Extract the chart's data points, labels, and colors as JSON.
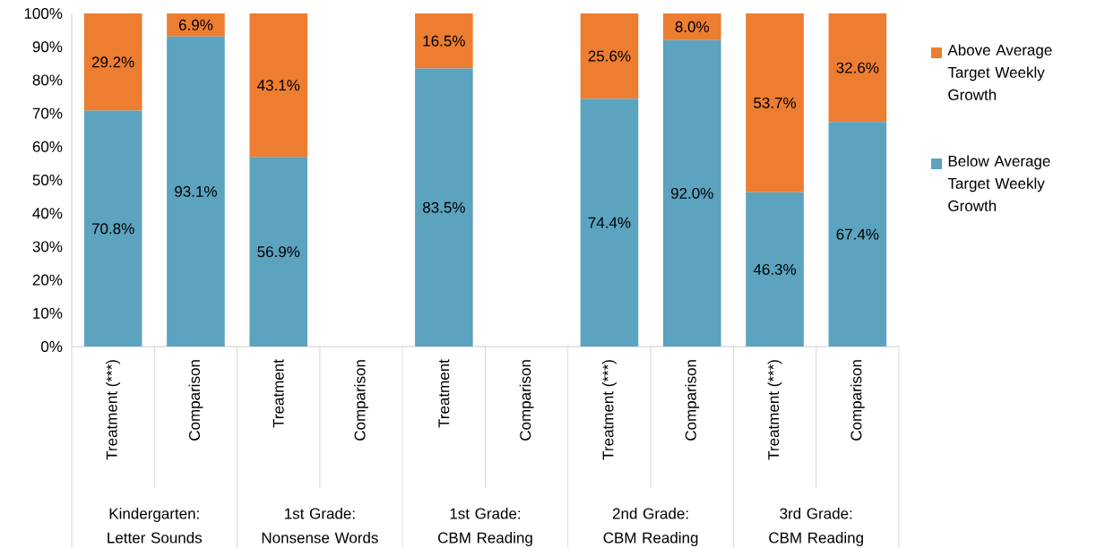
{
  "chart_data": {
    "type": "bar",
    "stacked": true,
    "categories": [
      "Treatment (***)",
      "Comparison",
      "Treatment",
      "Comparison",
      "Treatment",
      "Comparison",
      "Treatment (***)",
      "Comparison",
      "Treatment (***)",
      "Comparison"
    ],
    "series": [
      {
        "name": "Below Average Target Weekly Growth",
        "color": "#5ba3bf",
        "values": [
          70.8,
          93.1,
          56.9,
          null,
          83.5,
          null,
          74.4,
          92.0,
          46.3,
          67.4
        ],
        "value_labels": [
          "70.8%",
          "93.1%",
          "56.9%",
          null,
          "83.5%",
          null,
          "74.4%",
          "92.0%",
          "46.3%",
          "67.4%"
        ]
      },
      {
        "name": "Above Average Target Weekly Growth",
        "color": "#ed7d31",
        "values": [
          29.2,
          6.9,
          43.1,
          null,
          16.5,
          null,
          25.6,
          8.0,
          53.7,
          32.6
        ],
        "value_labels": [
          "29.2%",
          "6.9%",
          "43.1%",
          null,
          "16.5%",
          null,
          "25.6%",
          "8.0%",
          "53.7%",
          "32.6%"
        ]
      }
    ],
    "ylim": [
      0,
      100
    ],
    "yticks": [
      {
        "value": 0,
        "label": "0%"
      },
      {
        "value": 10,
        "label": "10%"
      },
      {
        "value": 20,
        "label": "20%"
      },
      {
        "value": 30,
        "label": "30%"
      },
      {
        "value": 40,
        "label": "40%"
      },
      {
        "value": 50,
        "label": "50%"
      },
      {
        "value": 60,
        "label": "60%"
      },
      {
        "value": 70,
        "label": "70%"
      },
      {
        "value": 80,
        "label": "80%"
      },
      {
        "value": 90,
        "label": "90%"
      },
      {
        "value": 100,
        "label": "100%"
      }
    ],
    "legend": "right",
    "annotations": [
      "Kindergarten: Letter Sounds",
      "1st Grade: Nonsense Words",
      "1st Grade: CBM Reading",
      "2nd Grade: CBM Reading",
      "3rd Grade: CBM Reading"
    ]
  }
}
